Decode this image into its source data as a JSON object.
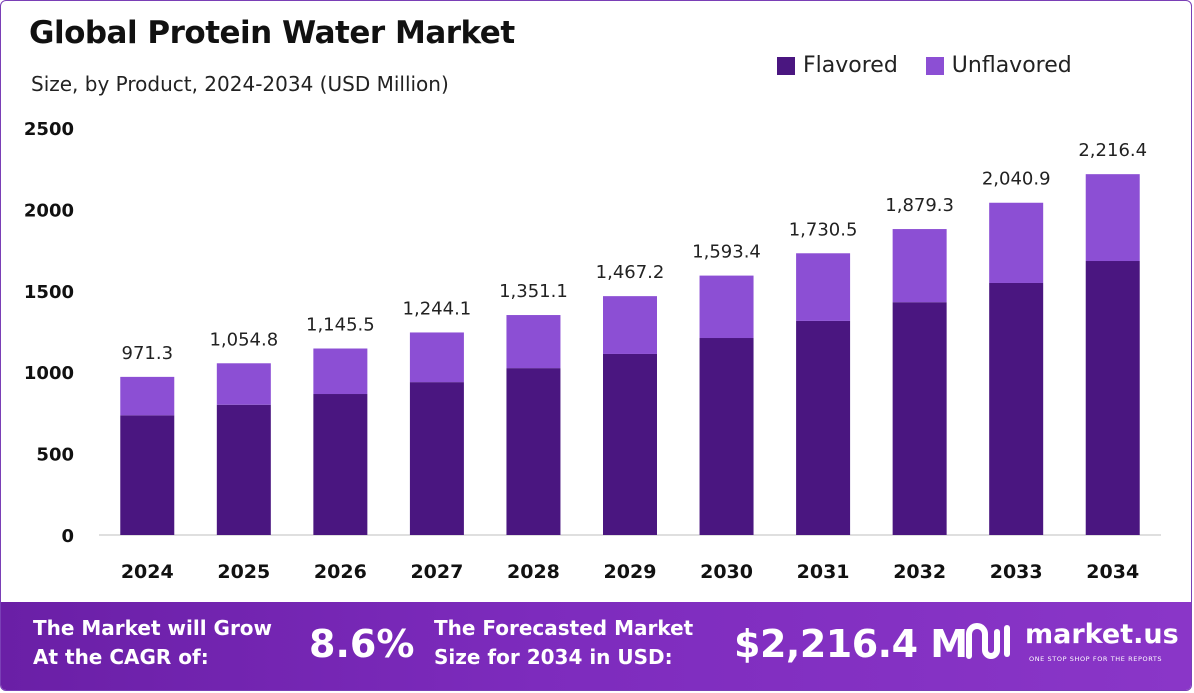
{
  "title": "Global Protein Water Market",
  "subtitle": "Size, by Product, 2024-2034 (USD Million)",
  "colors": {
    "flavored": "#4a1680",
    "unflavored": "#8c4fd4",
    "footer": "#7a2bb8",
    "gridline": "#bfbfbf"
  },
  "chart_data": {
    "type": "bar",
    "stacked": true,
    "categories": [
      "2024",
      "2025",
      "2026",
      "2027",
      "2028",
      "2029",
      "2030",
      "2031",
      "2032",
      "2033",
      "2034"
    ],
    "series": [
      {
        "name": "Flavored",
        "values": [
          735,
          800,
          866,
          939,
          1025,
          1112,
          1210,
          1315,
          1430,
          1548,
          1683
        ]
      },
      {
        "name": "Unflavored",
        "values": [
          236.3,
          254.8,
          279.5,
          305.1,
          326.1,
          355.2,
          383.4,
          415.5,
          449.3,
          492.9,
          533.4
        ]
      }
    ],
    "totals": [
      "971.3",
      "1,054.8",
      "1,145.5",
      "1,244.1",
      "1,351.1",
      "1,467.2",
      "1,593.4",
      "1,730.5",
      "1,879.3",
      "2,040.9",
      "2,216.4"
    ],
    "yticks": [
      "0",
      "500",
      "1000",
      "1500",
      "2000",
      "2500"
    ],
    "ylim": [
      0,
      2500
    ],
    "grid": false,
    "legend_position": "top-right"
  },
  "footer": {
    "cagr_line1": "The Market will Grow",
    "cagr_line2": "At the CAGR of:",
    "cagr_value": "8.6%",
    "forecast_line1": "The Forecasted Market",
    "forecast_line2": "Size for 2034 in USD:",
    "forecast_value": "$2,216.4 M",
    "brand_name": "market.us",
    "brand_tagline": "ONE STOP SHOP FOR THE REPORTS"
  }
}
